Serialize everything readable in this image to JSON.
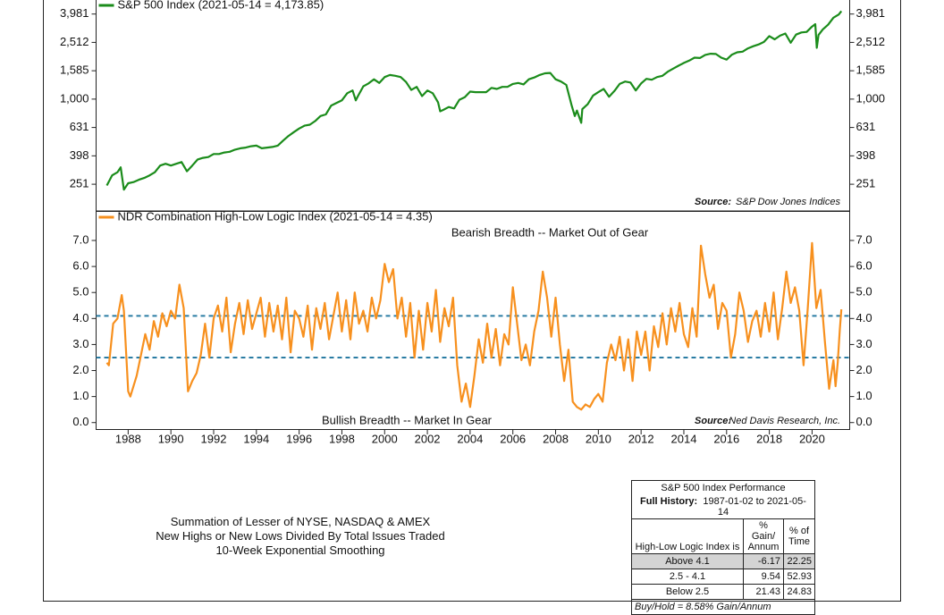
{
  "chart_data": [
    {
      "type": "line",
      "log_scale": true,
      "series": [
        {
          "name": "S&P 500 Index (2021-05-14 = 4,173.85)",
          "color": "#1b8c1b",
          "values": [
            246,
            290,
            305,
            330,
            230,
            255,
            260,
            270,
            278,
            290,
            305,
            340,
            350,
            340,
            350,
            360,
            310,
            340,
            375,
            385,
            390,
            410,
            410,
            420,
            425,
            440,
            450,
            455,
            465,
            470,
            450,
            455,
            460,
            470,
            510,
            550,
            585,
            620,
            650,
            660,
            700,
            760,
            780,
            900,
            940,
            980,
            1100,
            1150,
            980,
            1050,
            1230,
            1290,
            1380,
            1300,
            1430,
            1480,
            1460,
            1430,
            1320,
            1160,
            1220,
            1050,
            1150,
            1100,
            950,
            820,
            840,
            880,
            860,
            990,
            1030,
            1130,
            1120,
            1120,
            1120,
            1200,
            1180,
            1220,
            1220,
            1280,
            1300,
            1270,
            1380,
            1420,
            1480,
            1520,
            1530,
            1380,
            1330,
            1260,
            900,
            760,
            830,
            680,
            850,
            920,
            1060,
            1120,
            1180,
            1040,
            1140,
            1280,
            1330,
            1310,
            1150,
            1290,
            1390,
            1370,
            1430,
            1460,
            1560,
            1640,
            1720,
            1800,
            1870,
            1960,
            1950,
            2050,
            2090,
            2080,
            1960,
            1900,
            2060,
            2140,
            2160,
            2280,
            2360,
            2430,
            2530,
            2780,
            2640,
            2800,
            2900,
            2500,
            2850,
            2950,
            2980,
            3250,
            3380,
            2300,
            2830,
            3100,
            3350,
            3750,
            3950,
            4174
          ]
        }
      ],
      "x": [
        1987.0,
        1987.25,
        1987.5,
        1987.65,
        1987.8,
        1988.0,
        1988.25,
        1988.5,
        1988.75,
        1989.0,
        1989.25,
        1989.5,
        1989.75,
        1990.0,
        1990.25,
        1990.5,
        1990.75,
        1991.0,
        1991.25,
        1991.5,
        1991.75,
        1992.0,
        1992.25,
        1992.5,
        1992.75,
        1993.0,
        1993.25,
        1993.5,
        1993.75,
        1994.0,
        1994.25,
        1994.5,
        1994.75,
        1995.0,
        1995.25,
        1995.5,
        1995.75,
        1996.0,
        1996.25,
        1996.5,
        1996.75,
        1997.0,
        1997.25,
        1997.5,
        1997.75,
        1998.0,
        1998.25,
        1998.5,
        1998.65,
        1998.75,
        1999.0,
        1999.25,
        1999.5,
        1999.75,
        2000.0,
        2000.25,
        2000.5,
        2000.75,
        2001.0,
        2001.25,
        2001.5,
        2001.75,
        2002.0,
        2002.25,
        2002.5,
        2002.6,
        2002.75,
        2003.0,
        2003.25,
        2003.5,
        2003.75,
        2004.0,
        2004.25,
        2004.5,
        2004.75,
        2005.0,
        2005.25,
        2005.5,
        2005.75,
        2006.0,
        2006.25,
        2006.5,
        2006.75,
        2007.0,
        2007.25,
        2007.5,
        2007.75,
        2008.0,
        2008.25,
        2008.5,
        2008.75,
        2008.9,
        2009.0,
        2009.2,
        2009.25,
        2009.5,
        2009.75,
        2010.0,
        2010.25,
        2010.5,
        2010.75,
        2011.0,
        2011.25,
        2011.5,
        2011.75,
        2012.0,
        2012.25,
        2012.5,
        2012.75,
        2013.0,
        2013.25,
        2013.5,
        2013.75,
        2014.0,
        2014.25,
        2014.5,
        2014.75,
        2015.0,
        2015.25,
        2015.5,
        2015.75,
        2016.0,
        2016.25,
        2016.5,
        2016.75,
        2017.0,
        2017.25,
        2017.5,
        2017.75,
        2018.0,
        2018.25,
        2018.5,
        2018.75,
        2019.0,
        2019.25,
        2019.5,
        2019.75,
        2020.0,
        2020.15,
        2020.22,
        2020.3,
        2020.5,
        2020.75,
        2021.0,
        2021.25,
        2021.37
      ],
      "xlim": [
        1986.5,
        2021.76
      ],
      "ylim": [
        165,
        5000
      ],
      "yticks": [
        251,
        398,
        631,
        {
          "value": 1000,
          "label": "1,000"
        },
        {
          "value": 1585,
          "label": "1,585"
        },
        {
          "value": 2512,
          "label": "2,512"
        },
        {
          "value": 3981,
          "label": "3,981"
        }
      ],
      "source_label": "Source:",
      "source": "S&P Dow Jones Indices"
    },
    {
      "type": "line",
      "series": [
        {
          "name": "NDR Combination High-Low Logic Index (2021-05-14 = 4.35)",
          "color": "#f7901e",
          "values": [
            2.3,
            2.2,
            3.8,
            4.0,
            4.9,
            4.3,
            1.2,
            1.0,
            1.8,
            2.6,
            3.4,
            2.8,
            3.9,
            3.3,
            4.2,
            3.7,
            4.3,
            4.0,
            5.3,
            4.4,
            1.2,
            1.6,
            1.9,
            2.6,
            3.8,
            2.5,
            4.0,
            4.5,
            3.5,
            4.8,
            2.7,
            3.8,
            4.6,
            3.4,
            4.7,
            3.6,
            4.2,
            4.8,
            3.3,
            4.6,
            3.5,
            4.5,
            3.2,
            4.8,
            2.7,
            4.3,
            4.0,
            3.3,
            4.5,
            2.8,
            4.4,
            3.6,
            4.6,
            3.2,
            4.1,
            5.0,
            3.5,
            4.7,
            3.2,
            5.0,
            3.8,
            4.3,
            3.5,
            4.8,
            4.0,
            4.7,
            6.1,
            5.4,
            5.9,
            4.0,
            4.8,
            3.3,
            4.6,
            2.5,
            4.3,
            2.8,
            4.6,
            3.5,
            5.1,
            3.1,
            4.4,
            3.7,
            4.8,
            2.2,
            0.8,
            1.5,
            0.6,
            1.8,
            3.2,
            2.3,
            3.8,
            2.5,
            3.6,
            2.2,
            3.4,
            3.0,
            5.2,
            3.8,
            2.4,
            3.0,
            2.2,
            3.5,
            4.3,
            5.8,
            4.8,
            3.3,
            4.8,
            3.0,
            1.6,
            2.8,
            0.8,
            0.6,
            0.5,
            0.7,
            0.6,
            0.9,
            1.1,
            0.8,
            2.3,
            3.0,
            2.4,
            3.3,
            2.0,
            3.2,
            1.6,
            3.5,
            2.6,
            3.5,
            2.0,
            3.7,
            2.9,
            4.2,
            3.0,
            4.4,
            3.5,
            4.6,
            3.4,
            2.9,
            4.4,
            3.3,
            6.8,
            5.7,
            4.8,
            5.3,
            3.6,
            4.6,
            4.3,
            2.5,
            3.4,
            5.0,
            4.3,
            3.1,
            3.9,
            4.3,
            3.3,
            4.6,
            3.5,
            5.0,
            3.2,
            4.4,
            5.8,
            4.6,
            5.2,
            4.3,
            2.2,
            4.4,
            6.9,
            4.4,
            5.1,
            3.1,
            1.3,
            2.4,
            1.4,
            2.3,
            3.6,
            4.35
          ]
        }
      ],
      "x": [
        1987.0,
        1987.1,
        1987.3,
        1987.5,
        1987.7,
        1987.8,
        1988.0,
        1988.1,
        1988.4,
        1988.6,
        1988.8,
        1989.0,
        1989.2,
        1989.4,
        1989.6,
        1989.8,
        1990.0,
        1990.2,
        1990.4,
        1990.6,
        1990.8,
        1991.0,
        1991.2,
        1991.4,
        1991.6,
        1991.8,
        1992.0,
        1992.2,
        1992.4,
        1992.6,
        1992.8,
        1993.0,
        1993.2,
        1993.4,
        1993.6,
        1993.8,
        1994.0,
        1994.2,
        1994.4,
        1994.6,
        1994.8,
        1995.0,
        1995.2,
        1995.4,
        1995.6,
        1995.8,
        1996.0,
        1996.2,
        1996.4,
        1996.6,
        1996.8,
        1997.0,
        1997.2,
        1997.4,
        1997.6,
        1997.8,
        1998.0,
        1998.2,
        1998.4,
        1998.6,
        1998.8,
        1999.0,
        1999.2,
        1999.4,
        1999.6,
        1999.8,
        2000.0,
        2000.2,
        2000.4,
        2000.6,
        2000.8,
        2001.0,
        2001.2,
        2001.4,
        2001.6,
        2001.8,
        2002.0,
        2002.2,
        2002.4,
        2002.6,
        2002.8,
        2003.0,
        2003.2,
        2003.4,
        2003.6,
        2003.8,
        2004.0,
        2004.2,
        2004.4,
        2004.6,
        2004.8,
        2005.0,
        2005.2,
        2005.4,
        2005.6,
        2005.8,
        2006.0,
        2006.2,
        2006.4,
        2006.6,
        2006.8,
        2007.0,
        2007.2,
        2007.4,
        2007.6,
        2007.8,
        2008.0,
        2008.2,
        2008.4,
        2008.6,
        2008.8,
        2009.0,
        2009.2,
        2009.4,
        2009.6,
        2009.8,
        2010.0,
        2010.2,
        2010.4,
        2010.6,
        2010.8,
        2011.0,
        2011.2,
        2011.4,
        2011.6,
        2011.8,
        2012.0,
        2012.2,
        2012.4,
        2012.6,
        2012.8,
        2013.0,
        2013.2,
        2013.4,
        2013.6,
        2013.8,
        2014.0,
        2014.2,
        2014.4,
        2014.6,
        2014.8,
        2015.0,
        2015.2,
        2015.4,
        2015.6,
        2015.8,
        2016.0,
        2016.2,
        2016.4,
        2016.6,
        2016.8,
        2017.0,
        2017.2,
        2017.4,
        2017.6,
        2017.8,
        2018.0,
        2018.2,
        2018.4,
        2018.6,
        2018.8,
        2019.0,
        2019.2,
        2019.4,
        2019.6,
        2019.8,
        2020.0,
        2020.2,
        2020.4,
        2020.6,
        2020.8,
        2021.0,
        2021.1,
        2021.2,
        2021.3,
        2021.37
      ],
      "xlim": [
        1986.5,
        2021.76
      ],
      "ylim": [
        -0.25,
        8.1
      ],
      "xticks": [
        1988,
        1990,
        1992,
        1994,
        1996,
        1998,
        2000,
        2002,
        2004,
        2006,
        2008,
        2010,
        2012,
        2014,
        2016,
        2018,
        2020
      ],
      "yticks": [
        {
          "value": 0,
          "label": "0.0"
        },
        {
          "value": 1,
          "label": "1.0"
        },
        {
          "value": 2,
          "label": "2.0"
        },
        {
          "value": 3,
          "label": "3.0"
        },
        {
          "value": 4,
          "label": "4.0"
        },
        {
          "value": 5,
          "label": "5.0"
        },
        {
          "value": 6,
          "label": "6.0"
        },
        {
          "value": 7,
          "label": "7.0"
        }
      ],
      "reference_lines": [
        4.1,
        2.5
      ],
      "reference_color": "#2a7ca3",
      "annotation_top": "Bearish Breadth -- Market Out of Gear",
      "annotation_bottom": "Bullish Breadth -- Market In Gear",
      "source_label": "Source:",
      "source": "Ned Davis Research, Inc."
    }
  ],
  "notes": [
    "Summation of Lesser of NYSE, NASDAQ & AMEX",
    "New Highs or New Lows Divided By Total Issues Traded",
    "10-Week Exponential Smoothing"
  ],
  "table": {
    "title": "S&P 500 Index Performance",
    "history_label": "Full History:",
    "history": "1987-01-02 to 2021-05-14",
    "header": [
      "High-Low Logic Index is",
      "% Gain/ Annum",
      "% of Time"
    ],
    "rows": [
      [
        "Above 4.1",
        "-6.17",
        "22.25"
      ],
      [
        "2.5 - 4.1",
        "9.54",
        "52.93"
      ],
      [
        "Below 2.5",
        "21.43",
        "24.83"
      ]
    ],
    "footer": "Buy/Hold = 8.58% Gain/Annum"
  }
}
